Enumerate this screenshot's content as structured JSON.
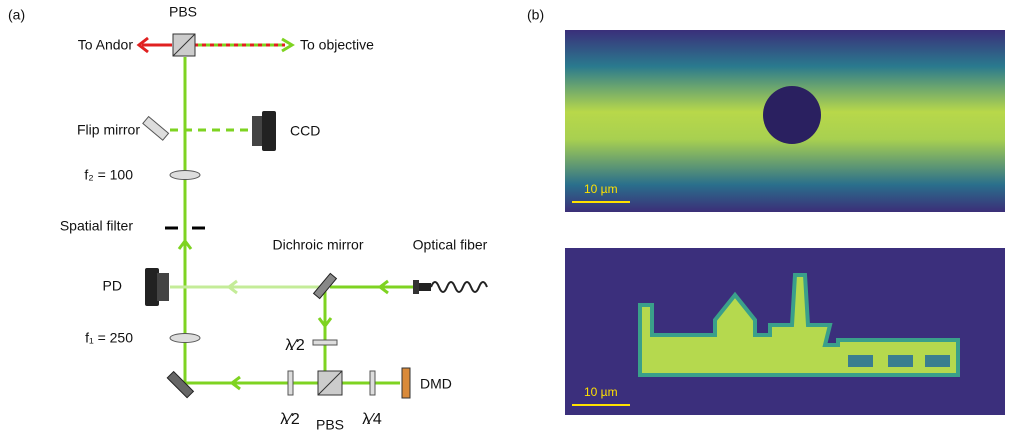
{
  "panels": {
    "a": "(a)",
    "b": "(b)"
  },
  "labels": {
    "pbs_top": "PBS",
    "to_andor": "To Andor",
    "to_objective": "To objective",
    "flip_mirror": "Flip mirror",
    "ccd": "CCD",
    "f2": "f₂ = 100",
    "spatial_filter": "Spatial filter",
    "dichroic_mirror": "Dichroic mirror",
    "optical_fiber": "Optical fiber",
    "pd": "PD",
    "f1": "f₁ = 250",
    "half_wave_upper": "λ⁄2",
    "dmd": "DMD",
    "half_wave_lower": "λ⁄2",
    "pbs_bottom": "PBS",
    "quarter_wave": "λ⁄4"
  },
  "images": {
    "top_scale_bar": "10 µm",
    "bottom_scale_bar": "10 µm"
  }
}
